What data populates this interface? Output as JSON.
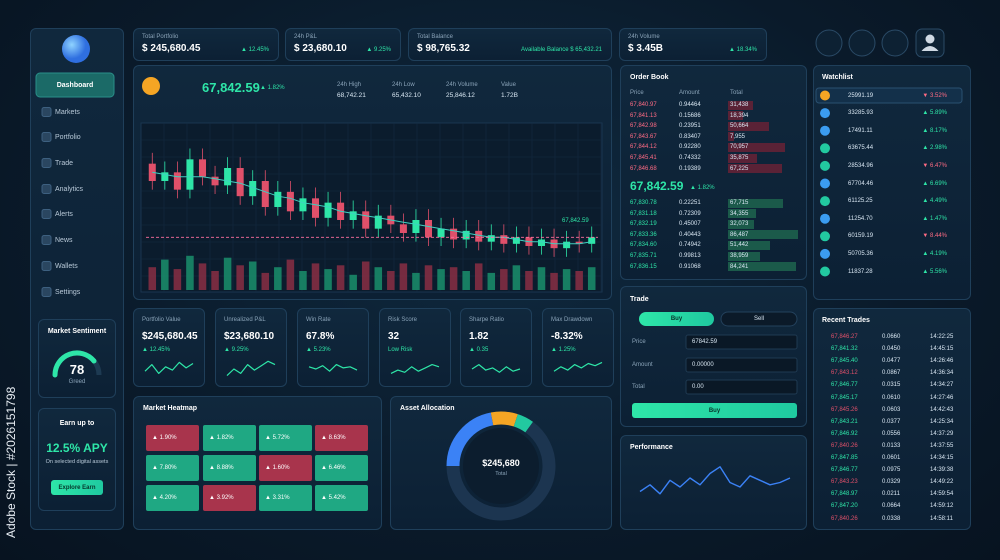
{
  "watermark": "Adobe Stock | #2026151798",
  "stats": [
    {
      "label": "Total Portfolio",
      "value": "$ 245,680.45",
      "change": "▲ 12.45%"
    },
    {
      "label": "24h P&L",
      "value": "$ 23,680.10",
      "change": "▲ 9.25%"
    },
    {
      "label": "Total Balance",
      "value": "$ 98,765.32",
      "change": "Available Balance $ 65,432.21"
    },
    {
      "label": "24h Volume",
      "value": "$ 3.45B",
      "change": "▲ 18.34%"
    }
  ],
  "nav": [
    "Dashboard",
    "Markets",
    "Portfolio",
    "Trade",
    "Analytics",
    "Alerts",
    "News",
    "Wallets",
    "Settings"
  ],
  "sentiment": {
    "title": "Market Sentiment",
    "value": 78,
    "label": "Greed",
    "range": [
      0,
      100
    ]
  },
  "earn": {
    "title": "Earn up to",
    "apy": "12.5% APY",
    "text": "On selected digital assets",
    "button": "Explore Earn"
  },
  "price_panel": {
    "price": "67,842.59",
    "change": "▲ 1.82%",
    "stats": [
      {
        "label": "24h High",
        "value": "68,742.21"
      },
      {
        "label": "24h Low",
        "value": "65,432.10"
      },
      {
        "label": "24h Volume",
        "value": "25,846.12"
      },
      {
        "label": "Value",
        "value": "1.72B"
      }
    ],
    "chart": {
      "type": "candlestick",
      "open": [
        70,
        62,
        66,
        58,
        72,
        64,
        60,
        68,
        55,
        62,
        50,
        57,
        48,
        54,
        45,
        52,
        44,
        48,
        40,
        46,
        42,
        38,
        44,
        36,
        40,
        35,
        39,
        34,
        37,
        33,
        36,
        32,
        35,
        31,
        34,
        33
      ],
      "close": [
        62,
        66,
        58,
        72,
        64,
        60,
        68,
        55,
        62,
        50,
        57,
        48,
        54,
        45,
        52,
        44,
        48,
        40,
        46,
        42,
        38,
        44,
        36,
        40,
        35,
        39,
        34,
        37,
        33,
        36,
        32,
        35,
        31,
        34,
        33,
        36
      ],
      "high": [
        75,
        71,
        71,
        77,
        77,
        69,
        73,
        73,
        67,
        67,
        62,
        62,
        59,
        59,
        57,
        57,
        53,
        53,
        51,
        51,
        47,
        49,
        49,
        45,
        45,
        44,
        44,
        42,
        42,
        41,
        41,
        40,
        40,
        39,
        39,
        41
      ],
      "low": [
        58,
        58,
        54,
        54,
        60,
        56,
        56,
        51,
        51,
        46,
        46,
        44,
        44,
        41,
        41,
        40,
        40,
        36,
        36,
        38,
        34,
        34,
        32,
        32,
        31,
        31,
        30,
        30,
        29,
        29,
        28,
        28,
        27,
        27,
        29,
        29
      ],
      "volume": [
        60,
        80,
        55,
        90,
        70,
        50,
        85,
        65,
        75,
        45,
        60,
        80,
        50,
        70,
        55,
        65,
        40,
        75,
        60,
        50,
        70,
        45,
        65,
        55,
        60,
        50,
        70,
        45,
        55,
        65,
        50,
        60,
        45,
        55,
        50,
        60
      ],
      "ma": [
        66,
        65,
        64,
        64,
        64,
        63,
        62,
        61,
        59,
        57,
        55,
        54,
        52,
        51,
        50,
        48,
        47,
        46,
        45,
        44,
        43,
        42,
        41,
        40,
        39,
        38,
        37,
        36,
        36,
        35,
        34,
        34,
        33,
        33,
        33,
        34
      ],
      "ylim": [
        20,
        80
      ],
      "volume_lim": [
        0,
        100
      ],
      "price_label": "67,842.59"
    }
  },
  "metrics": {
    "spark_range": [
      0,
      100
    ],
    "cards": [
      {
        "label": "Portfolio Value",
        "value": "$245,680.45",
        "change": "▲ 12.45%",
        "spark": [
          40,
          70,
          30,
          60,
          45,
          80,
          55,
          75
        ]
      },
      {
        "label": "Unrealized P&L",
        "value": "$23,680.10",
        "change": "▲ 9.25%",
        "spark": [
          20,
          50,
          30,
          70,
          45,
          65,
          85,
          70
        ]
      },
      {
        "label": "Win Rate",
        "value": "67.8%",
        "change": "▲ 5.23%",
        "spark": [
          60,
          50,
          65,
          40,
          70,
          55,
          60,
          45
        ]
      },
      {
        "label": "Risk Score",
        "value": "32",
        "change": "Low Risk",
        "spark": [
          30,
          45,
          35,
          60,
          40,
          55,
          70,
          60
        ]
      },
      {
        "label": "Sharpe Ratio",
        "value": "1.82",
        "change": "▲ 0.35",
        "spark": [
          50,
          70,
          45,
          55,
          35,
          60,
          40,
          50
        ]
      },
      {
        "label": "Max Drawdown",
        "value": "-8.32%",
        "change": "▲ 1.25%",
        "spark": [
          40,
          60,
          45,
          70,
          55,
          75,
          65,
          80
        ]
      }
    ]
  },
  "heatmap": {
    "title": "Market Heatmap",
    "cells": [
      {
        "label": "▲ 1.90%",
        "color": "#a8344c"
      },
      {
        "label": "▲ 1.82%",
        "color": "#1fa883"
      },
      {
        "label": "▲ 5.72%",
        "color": "#1fa883"
      },
      {
        "label": "▲ 8.63%",
        "color": "#a8344c"
      },
      {
        "label": "▲ 7.80%",
        "color": "#1fa883"
      },
      {
        "label": "▲ 8.88%",
        "color": "#1fa883"
      },
      {
        "label": "▲ 1.60%",
        "color": "#a8344c"
      },
      {
        "label": "▲ 6.46%",
        "color": "#1fa883"
      },
      {
        "label": "▲ 4.20%",
        "color": "#1fa883"
      },
      {
        "label": "▲ 3.92%",
        "color": "#a8344c"
      },
      {
        "label": "▲ 3.31%",
        "color": "#1fa883"
      },
      {
        "label": "▲ 5.42%",
        "color": "#1fa883"
      }
    ]
  },
  "allocation": {
    "title": "Asset Allocation",
    "total": "$245,680",
    "total_label": "Total",
    "chart": {
      "type": "donut",
      "values": [
        22,
        8,
        5,
        65
      ],
      "colors": [
        "#3b82f6",
        "#f5a524",
        "#22c9a0",
        "#1c3550"
      ]
    }
  },
  "order_book": {
    "title": "Order Book",
    "columns": [
      "Price",
      "Amount",
      "Total"
    ],
    "asks": [
      [
        "67,840.97",
        "0.94464",
        "31,438"
      ],
      [
        "67,841.13",
        "0.15686",
        "18,394"
      ],
      [
        "67,842.98",
        "0.23951",
        "50,664"
      ],
      [
        "67,843.67",
        "0.83407",
        "7,955"
      ],
      [
        "67,844.12",
        "0.92280",
        "70,957"
      ],
      [
        "67,845.41",
        "0.74332",
        "35,875"
      ],
      [
        "67,846.68",
        "0.19389",
        "67,225"
      ]
    ],
    "mid_price": "67,842.59",
    "mid_change": "▲ 1.82%",
    "bids": [
      [
        "67,830.78",
        "0.22251",
        "67,715"
      ],
      [
        "67,831.18",
        "0.72309",
        "34,355"
      ],
      [
        "67,832.19",
        "0.45007",
        "32,073"
      ],
      [
        "67,833.36",
        "0.40443",
        "86,487"
      ],
      [
        "67,834.60",
        "0.74942",
        "51,442"
      ],
      [
        "67,835.71",
        "0.99813",
        "38,959"
      ],
      [
        "67,836.15",
        "0.91068",
        "84,241"
      ]
    ]
  },
  "trade": {
    "title": "Trade",
    "tabs": [
      "Buy",
      "Sell"
    ],
    "fields": [
      {
        "label": "Price",
        "value": "67842.59"
      },
      {
        "label": "Amount",
        "value": "0.00000"
      },
      {
        "label": "Total",
        "value": "0.00"
      }
    ],
    "button": "Buy"
  },
  "performance": {
    "title": "Performance",
    "chart": {
      "type": "line",
      "values": [
        30,
        45,
        25,
        55,
        40,
        60,
        45,
        70,
        85,
        50,
        40,
        65,
        55,
        45,
        50,
        60
      ],
      "ylim": [
        0,
        100
      ]
    }
  },
  "watchlist": {
    "title": "Watchlist",
    "rows": [
      {
        "value": "25991.19",
        "change": "▼ 3.52%",
        "color": "#f5a524"
      },
      {
        "value": "33285.93",
        "change": "▲ 5.89%",
        "color": "#3b9cf0"
      },
      {
        "value": "17491.11",
        "change": "▲ 8.17%",
        "color": "#3b9cf0"
      },
      {
        "value": "63675.44",
        "change": "▲ 2.98%",
        "color": "#22c9a0"
      },
      {
        "value": "28534.96",
        "change": "▼ 6.47%",
        "color": "#22c9a0"
      },
      {
        "value": "67704.46",
        "change": "▲ 6.69%",
        "color": "#3b9cf0"
      },
      {
        "value": "61125.25",
        "change": "▲ 4.49%",
        "color": "#22c9a0"
      },
      {
        "value": "11254.70",
        "change": "▲ 1.47%",
        "color": "#3b9cf0"
      },
      {
        "value": "60159.19",
        "change": "▼ 8.44%",
        "color": "#22c9a0"
      },
      {
        "value": "50705.36",
        "change": "▲ 4.19%",
        "color": "#3b9cf0"
      },
      {
        "value": "11837.28",
        "change": "▲ 5.56%",
        "color": "#22c9a0"
      }
    ]
  },
  "recent_trades": {
    "title": "Recent Trades",
    "rows": [
      {
        "price": "67,846.27",
        "amount": "0.0660",
        "time": "14:22:25",
        "color": "#e0506a"
      },
      {
        "price": "67,841.32",
        "amount": "0.0450",
        "time": "14:45:15",
        "color": "#2ee6a8"
      },
      {
        "price": "67,845.40",
        "amount": "0.0477",
        "time": "14:26:46",
        "color": "#2ee6a8"
      },
      {
        "price": "67,843.12",
        "amount": "0.0867",
        "time": "14:36:34",
        "color": "#e0506a"
      },
      {
        "price": "67,846.77",
        "amount": "0.0315",
        "time": "14:34:27",
        "color": "#2ee6a8"
      },
      {
        "price": "67,845.17",
        "amount": "0.0610",
        "time": "14:27:46",
        "color": "#2ee6a8"
      },
      {
        "price": "67,845.26",
        "amount": "0.0603",
        "time": "14:42:43",
        "color": "#e0506a"
      },
      {
        "price": "67,843.21",
        "amount": "0.0377",
        "time": "14:25:34",
        "color": "#2ee6a8"
      },
      {
        "price": "67,846.92",
        "amount": "0.0556",
        "time": "14:37:29",
        "color": "#2ee6a8"
      },
      {
        "price": "67,840.26",
        "amount": "0.0133",
        "time": "14:37:55",
        "color": "#e0506a"
      },
      {
        "price": "67,847.85",
        "amount": "0.0601",
        "time": "14:34:15",
        "color": "#2ee6a8"
      },
      {
        "price": "67,846.77",
        "amount": "0.0975",
        "time": "14:39:38",
        "color": "#2ee6a8"
      },
      {
        "price": "67,843.23",
        "amount": "0.0329",
        "time": "14:49:22",
        "color": "#e0506a"
      },
      {
        "price": "67,848.97",
        "amount": "0.0211",
        "time": "14:59:54",
        "color": "#2ee6a8"
      },
      {
        "price": "67,847.20",
        "amount": "0.0664",
        "time": "14:59:12",
        "color": "#2ee6a8"
      },
      {
        "price": "67,840.26",
        "amount": "0.0338",
        "time": "14:58:11",
        "color": "#e0506a"
      }
    ]
  }
}
